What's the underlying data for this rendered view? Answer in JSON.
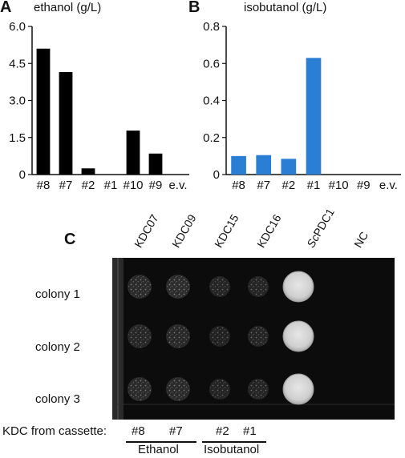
{
  "panels": {
    "A": "A",
    "B": "B",
    "C": "C"
  },
  "chart_data": [
    {
      "type": "bar",
      "panel": "A",
      "title": "ethanol (g/L)",
      "categories": [
        "#8",
        "#7",
        "#2",
        "#1",
        "#10",
        "#9",
        "e.v."
      ],
      "values": [
        5.1,
        4.15,
        0.25,
        0,
        1.78,
        0.85,
        0
      ],
      "yticks": [
        "6.0",
        "4.5",
        "3.0",
        "1.5",
        "0"
      ],
      "ylim": [
        0,
        6.0
      ],
      "color": "#000000"
    },
    {
      "type": "bar",
      "panel": "B",
      "title": "isobutanol (g/L)",
      "categories": [
        "#8",
        "#7",
        "#2",
        "#1",
        "#10",
        "#9",
        "e.v."
      ],
      "values": [
        0.1,
        0.105,
        0.085,
        0.63,
        0,
        0,
        0
      ],
      "yticks": [
        "0.8",
        "0.6",
        "0.4",
        "0.2",
        "0"
      ],
      "ylim": [
        0,
        0.8
      ],
      "color": "#2a7fd4"
    }
  ],
  "plate": {
    "columns": [
      "KDC07",
      "KDC09",
      "KDC15",
      "KDC16",
      "ScPDC1",
      "NC"
    ],
    "rows": [
      "colony 1",
      "colony 2",
      "colony 3"
    ],
    "growth": [
      [
        0.55,
        0.6,
        0.3,
        0.3,
        1.0,
        0
      ],
      [
        0.35,
        0.45,
        0.2,
        0.3,
        1.0,
        0
      ],
      [
        0.5,
        0.5,
        0.25,
        0.3,
        1.0,
        0
      ]
    ],
    "cassette_label": "KDC from cassette:",
    "cassette_values": [
      "#8",
      "#7",
      "#2",
      "#1"
    ],
    "groups": [
      "Ethanol",
      "Isobutanol"
    ]
  }
}
